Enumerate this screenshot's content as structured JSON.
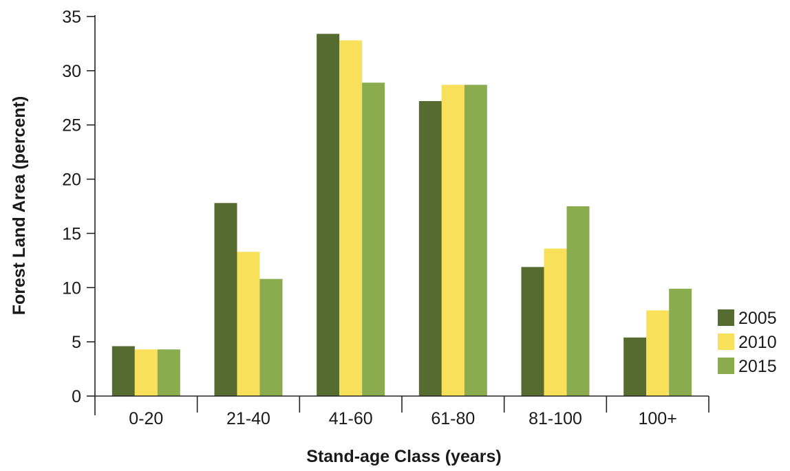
{
  "chart_data": {
    "type": "bar",
    "categories": [
      "0-20",
      "21-40",
      "41-60",
      "61-80",
      "81-100",
      "100+"
    ],
    "series": [
      {
        "name": "2005",
        "color": "#556b2f",
        "values": [
          4.6,
          17.8,
          33.4,
          27.2,
          11.9,
          5.4
        ]
      },
      {
        "name": "2010",
        "color": "#f9e05a",
        "values": [
          4.3,
          13.3,
          32.8,
          28.7,
          13.6,
          7.9
        ]
      },
      {
        "name": "2015",
        "color": "#8bab4f",
        "values": [
          4.3,
          10.8,
          28.9,
          28.7,
          17.5,
          9.9
        ]
      }
    ],
    "xlabel": "Stand-age Class (years)",
    "ylabel": "Forest Land Area (percent)",
    "ylim": [
      0,
      35
    ],
    "yticks": [
      0,
      5,
      10,
      15,
      20,
      25,
      30,
      35
    ],
    "grid": false,
    "legend_position": "right"
  }
}
